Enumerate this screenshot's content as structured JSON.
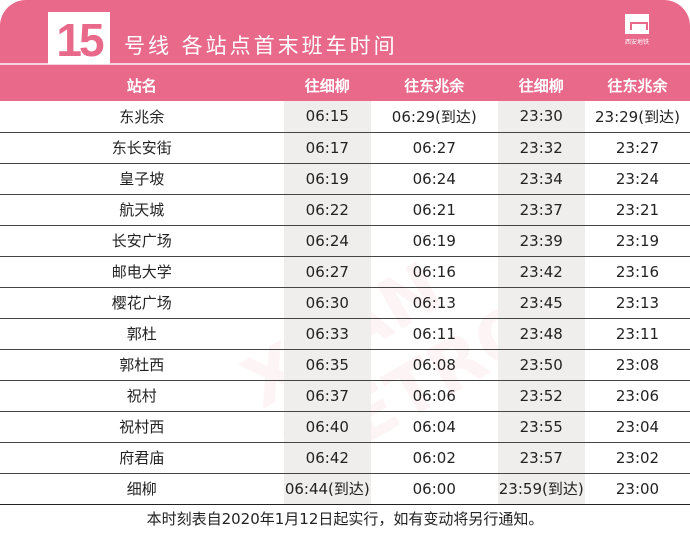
{
  "header": {
    "line_number": "15",
    "title": "号线  各站点首末班车时间",
    "logo_text": "西安地铁"
  },
  "columns": [
    "站名",
    "往细柳",
    "往东兆余",
    "往细柳",
    "往东兆余"
  ],
  "rows": [
    [
      "东兆余",
      "06:15",
      "06:29(到达)",
      "23:30",
      "23:29(到达)"
    ],
    [
      "东长安街",
      "06:17",
      "06:27",
      "23:32",
      "23:27"
    ],
    [
      "皇子坡",
      "06:19",
      "06:24",
      "23:34",
      "23:24"
    ],
    [
      "航天城",
      "06:22",
      "06:21",
      "23:37",
      "23:21"
    ],
    [
      "长安广场",
      "06:24",
      "06:19",
      "23:39",
      "23:19"
    ],
    [
      "邮电大学",
      "06:27",
      "06:16",
      "23:42",
      "23:16"
    ],
    [
      "樱花广场",
      "06:30",
      "06:13",
      "23:45",
      "23:13"
    ],
    [
      "郭杜",
      "06:33",
      "06:11",
      "23:48",
      "23:11"
    ],
    [
      "郭杜西",
      "06:35",
      "06:08",
      "23:50",
      "23:08"
    ],
    [
      "祝村",
      "06:37",
      "06:06",
      "23:52",
      "23:06"
    ],
    [
      "祝村西",
      "06:40",
      "06:04",
      "23:55",
      "23:04"
    ],
    [
      "府君庙",
      "06:42",
      "06:02",
      "23:57",
      "23:02"
    ],
    [
      "细柳",
      "06:44(到达)",
      "06:00",
      "23:59(到达)",
      "23:00"
    ]
  ],
  "footer": "本时刻表自2020年1月12日起实行，如有变动将另行通知。",
  "colors": {
    "brand": "#e8698a",
    "shade": "#f0eded"
  }
}
